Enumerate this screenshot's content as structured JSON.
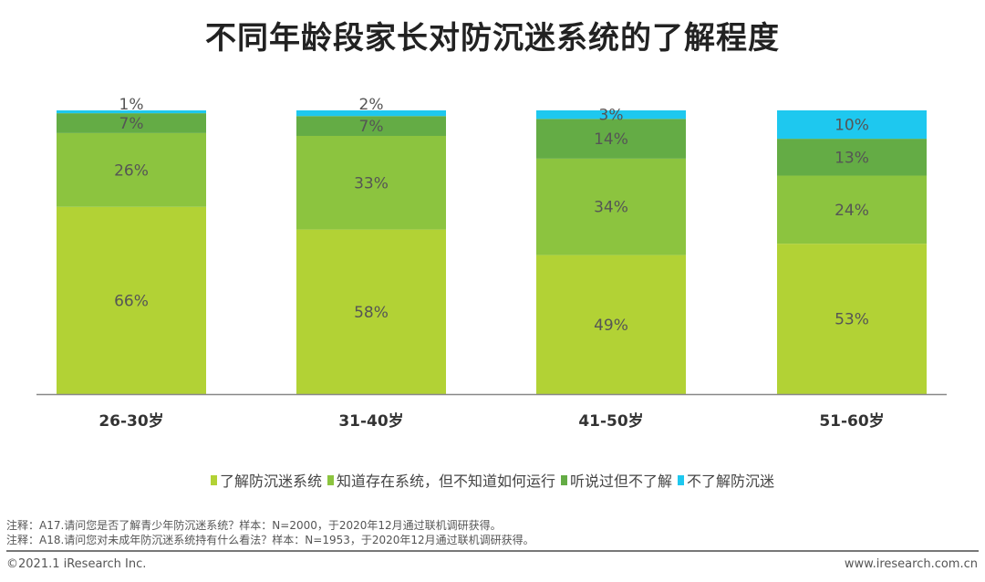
{
  "chart_data": {
    "type": "bar",
    "stacked": true,
    "title": "不同年龄段家长对防沉迷系统的了解程度",
    "categories": [
      "26-30岁",
      "31-40岁",
      "41-50岁",
      "51-60岁"
    ],
    "series": [
      {
        "name": "了解防沉迷系统",
        "color": "#b2d235",
        "values": [
          66,
          58,
          49,
          53
        ]
      },
      {
        "name": "知道存在系统，但不知道如何运行",
        "color": "#8cc43f",
        "values": [
          26,
          33,
          34,
          24
        ]
      },
      {
        "name": "听说过但不了解",
        "color": "#64ac45",
        "values": [
          7,
          7,
          14,
          13
        ]
      },
      {
        "name": "不了解防沉迷",
        "color": "#1ec8ef",
        "values": [
          1,
          2,
          3,
          10
        ]
      }
    ],
    "value_suffix": "%",
    "ylim": [
      0,
      100
    ],
    "xlabel": "",
    "ylabel": "",
    "grid": false,
    "legend_position": "bottom"
  },
  "notes": [
    "注释：A17.请问您是否了解青少年防沉迷系统？样本：N=2000，于2020年12月通过联机调研获得。",
    "注释：A18.请问您对未成年防沉迷系统持有什么看法？样本：N=1953，于2020年12月通过联机调研获得。"
  ],
  "footer": {
    "copyright": "©2021.1 iResearch Inc.",
    "website": "www.iresearch.com.cn"
  }
}
